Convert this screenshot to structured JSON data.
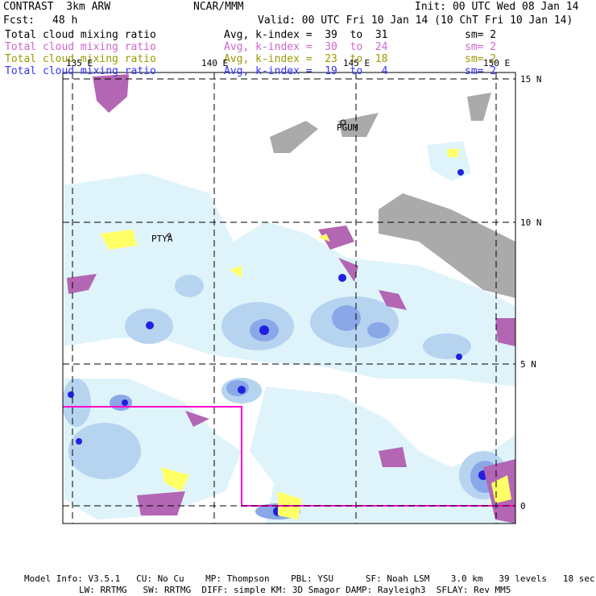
{
  "header": {
    "title": "CONTRAST  3km ARW",
    "center": "NCAR/MMM",
    "init": "Init: 00 UTC Wed 08 Jan 14",
    "fcst_label": "Fcst:",
    "fcst_value": "48 h",
    "valid": "Valid: 00 UTC Fri 10 Jan 14 (10 ChT Fri 10 Jan 14)"
  },
  "fields": [
    {
      "name": "Total cloud mixing ratio",
      "stat": "Avg, k-index =  39  to  31",
      "smooth": "sm= 2",
      "color": "#000000"
    },
    {
      "name": "Total cloud mixing ratio",
      "stat": "Avg, k-index =  30  to  24",
      "smooth": "sm= 2",
      "color": "#cc66cc"
    },
    {
      "name": "Total cloud mixing ratio",
      "stat": "Avg, k-index =  23  to  18",
      "smooth": "sm= 2",
      "color": "#999900"
    },
    {
      "name": "Total cloud mixing ratio",
      "stat": "Avg, k-index =  19  to   4",
      "smooth": "sm= 2",
      "color": "#3333ff"
    }
  ],
  "map": {
    "lon_labels": [
      "135 E",
      "140 E",
      "145 E",
      "150 E"
    ],
    "lat_labels": [
      "15 N",
      "10 N",
      "5 N",
      "0"
    ],
    "places": [
      "PGUM",
      "PTYA"
    ],
    "box_color": "#ff00cc"
  },
  "footer": {
    "line1": "Model Info: V3.5.1   CU: No Cu    MP: Thompson    PBL: YSU      SF: Noah LSM    3.0 km   39 levels   18 sec",
    "line2": "LW: RRTMG   SW: RRTMG  DIFF: simple KM: 3D Smagor DAMP: Rayleigh3  SFLAY: Rev MM5"
  }
}
